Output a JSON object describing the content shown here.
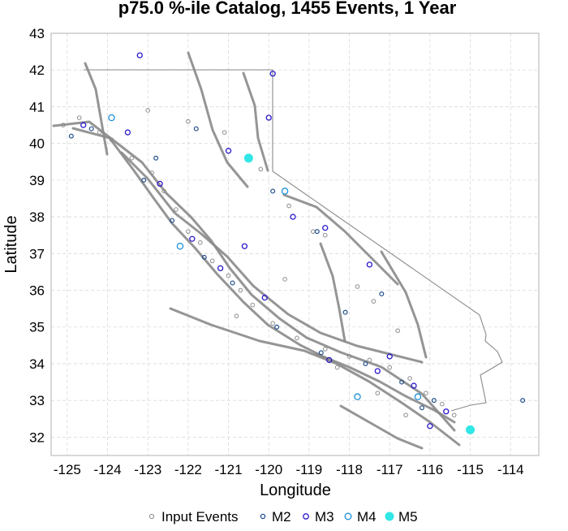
{
  "chart_data": {
    "type": "scatter",
    "title": "p75.0 %-ile Catalog, 1455 Events, 1 Year",
    "xlabel": "Longitude",
    "ylabel": "Latitude",
    "xlim": [
      -125.4,
      -113.3
    ],
    "ylim": [
      31.5,
      43.0
    ],
    "xticks": [
      "-125",
      "-124",
      "-123",
      "-122",
      "-121",
      "-120",
      "-119",
      "-118",
      "-117",
      "-116",
      "-115",
      "-114"
    ],
    "xtick_values": [
      -125,
      -124,
      -123,
      -122,
      -121,
      -120,
      -119,
      -118,
      -117,
      -116,
      -115,
      -114
    ],
    "yticks": [
      "32",
      "33",
      "34",
      "35",
      "36",
      "37",
      "38",
      "39",
      "40",
      "41",
      "42",
      "43"
    ],
    "ytick_values": [
      32,
      33,
      34,
      35,
      36,
      37,
      38,
      39,
      40,
      41,
      42,
      43
    ],
    "grid": true,
    "legend_position": "bottom-center",
    "colors": {
      "input": "#8c8c8c",
      "m2": "#1f4e8c",
      "m3": "#2a1acc",
      "m4": "#1e90d8",
      "m5": "#33e6e6",
      "map_lines": "#8a8a8a"
    },
    "series": [
      {
        "name": "Input Events",
        "marker": "open-circle-gray",
        "points": [
          [
            -124.2,
            40.3
          ],
          [
            -123.9,
            40.1
          ],
          [
            -123.4,
            39.6
          ],
          [
            -122.9,
            39.2
          ],
          [
            -122.6,
            38.7
          ],
          [
            -122.3,
            38.2
          ],
          [
            -122.0,
            37.6
          ],
          [
            -121.7,
            37.3
          ],
          [
            -121.4,
            36.8
          ],
          [
            -121.0,
            36.4
          ],
          [
            -120.7,
            36.0
          ],
          [
            -120.4,
            35.6
          ],
          [
            -119.9,
            35.1
          ],
          [
            -119.3,
            34.7
          ],
          [
            -118.6,
            34.4
          ],
          [
            -118.0,
            34.2
          ],
          [
            -117.5,
            34.1
          ],
          [
            -117.0,
            33.9
          ],
          [
            -116.5,
            33.6
          ],
          [
            -116.1,
            33.2
          ],
          [
            -115.7,
            32.9
          ],
          [
            -115.4,
            32.6
          ],
          [
            -118.9,
            37.6
          ],
          [
            -118.6,
            37.5
          ],
          [
            -119.5,
            38.3
          ],
          [
            -120.2,
            39.3
          ],
          [
            -121.1,
            40.3
          ],
          [
            -122.0,
            40.6
          ],
          [
            -123.0,
            40.9
          ],
          [
            -124.7,
            40.7
          ],
          [
            -125.1,
            40.5
          ],
          [
            -117.8,
            36.1
          ],
          [
            -117.4,
            35.7
          ],
          [
            -116.8,
            34.9
          ],
          [
            -120.8,
            35.3
          ],
          [
            -119.6,
            36.3
          ],
          [
            -118.3,
            33.9
          ],
          [
            -117.3,
            33.2
          ],
          [
            -116.6,
            32.6
          ]
        ]
      },
      {
        "name": "M2",
        "marker": "open-circle-darkblue",
        "points": [
          [
            -124.4,
            40.4
          ],
          [
            -123.1,
            39.0
          ],
          [
            -122.4,
            37.9
          ],
          [
            -121.6,
            36.9
          ],
          [
            -120.9,
            36.2
          ],
          [
            -119.8,
            35.0
          ],
          [
            -118.7,
            34.3
          ],
          [
            -117.6,
            34.0
          ],
          [
            -116.7,
            33.5
          ],
          [
            -115.9,
            33.0
          ],
          [
            -118.8,
            37.6
          ],
          [
            -120.5,
            39.6
          ],
          [
            -121.8,
            40.4
          ],
          [
            -117.2,
            35.9
          ],
          [
            -119.9,
            38.7
          ],
          [
            -116.2,
            32.8
          ],
          [
            -118.1,
            35.4
          ],
          [
            -122.8,
            39.6
          ],
          [
            -124.9,
            40.2
          ],
          [
            -113.7,
            33.0
          ]
        ]
      },
      {
        "name": "M3",
        "marker": "open-circle-blue",
        "points": [
          [
            -124.6,
            40.5
          ],
          [
            -123.5,
            40.3
          ],
          [
            -122.7,
            38.9
          ],
          [
            -121.9,
            37.4
          ],
          [
            -121.2,
            36.6
          ],
          [
            -120.1,
            35.8
          ],
          [
            -118.5,
            34.1
          ],
          [
            -117.3,
            33.8
          ],
          [
            -116.4,
            33.4
          ],
          [
            -115.6,
            32.7
          ],
          [
            -118.6,
            37.7
          ],
          [
            -120.0,
            40.7
          ],
          [
            -119.4,
            38.0
          ],
          [
            -117.0,
            34.2
          ],
          [
            -116.0,
            32.3
          ],
          [
            -123.2,
            42.4
          ],
          [
            -119.9,
            41.9
          ],
          [
            -117.5,
            36.7
          ],
          [
            -121.0,
            39.8
          ],
          [
            -120.6,
            37.2
          ]
        ]
      },
      {
        "name": "M4",
        "marker": "open-circle-lightblue",
        "points": [
          [
            -122.2,
            37.2
          ],
          [
            -117.8,
            33.1
          ],
          [
            -116.3,
            33.1
          ],
          [
            -119.6,
            38.7
          ],
          [
            -123.9,
            40.7
          ]
        ]
      },
      {
        "name": "M5",
        "marker": "filled-circle-cyan",
        "points": [
          [
            -120.5,
            39.6
          ],
          [
            -115.0,
            32.2
          ]
        ]
      }
    ]
  }
}
